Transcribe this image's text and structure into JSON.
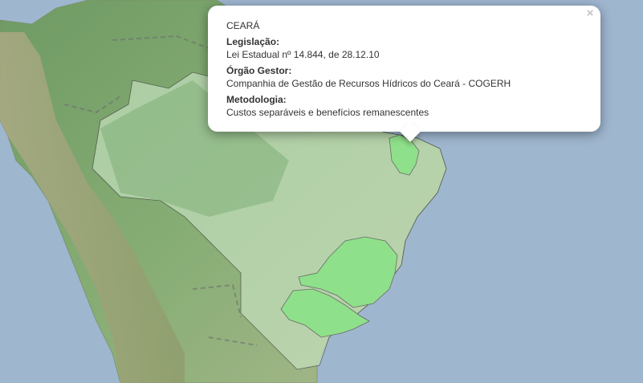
{
  "popup": {
    "state": "CEARÁ",
    "close_symbol": "×",
    "fields": [
      {
        "label": "Legislação:",
        "value": "Lei Estadual nº 14.844, de 28.12.10"
      },
      {
        "label": "Órgão Gestor:",
        "value": "Companhia de Gestão de Recursos Hídricos do Ceará - COGERH"
      },
      {
        "label": "Metodologia:",
        "value": "Custos separáveis e benefícios remanescentes"
      }
    ]
  },
  "map": {
    "ocean_color": "#9fb6cf",
    "highlight_color": "#8fe08a",
    "highlighted_states": [
      "Ceará",
      "Minas Gerais",
      "São Paulo"
    ]
  }
}
